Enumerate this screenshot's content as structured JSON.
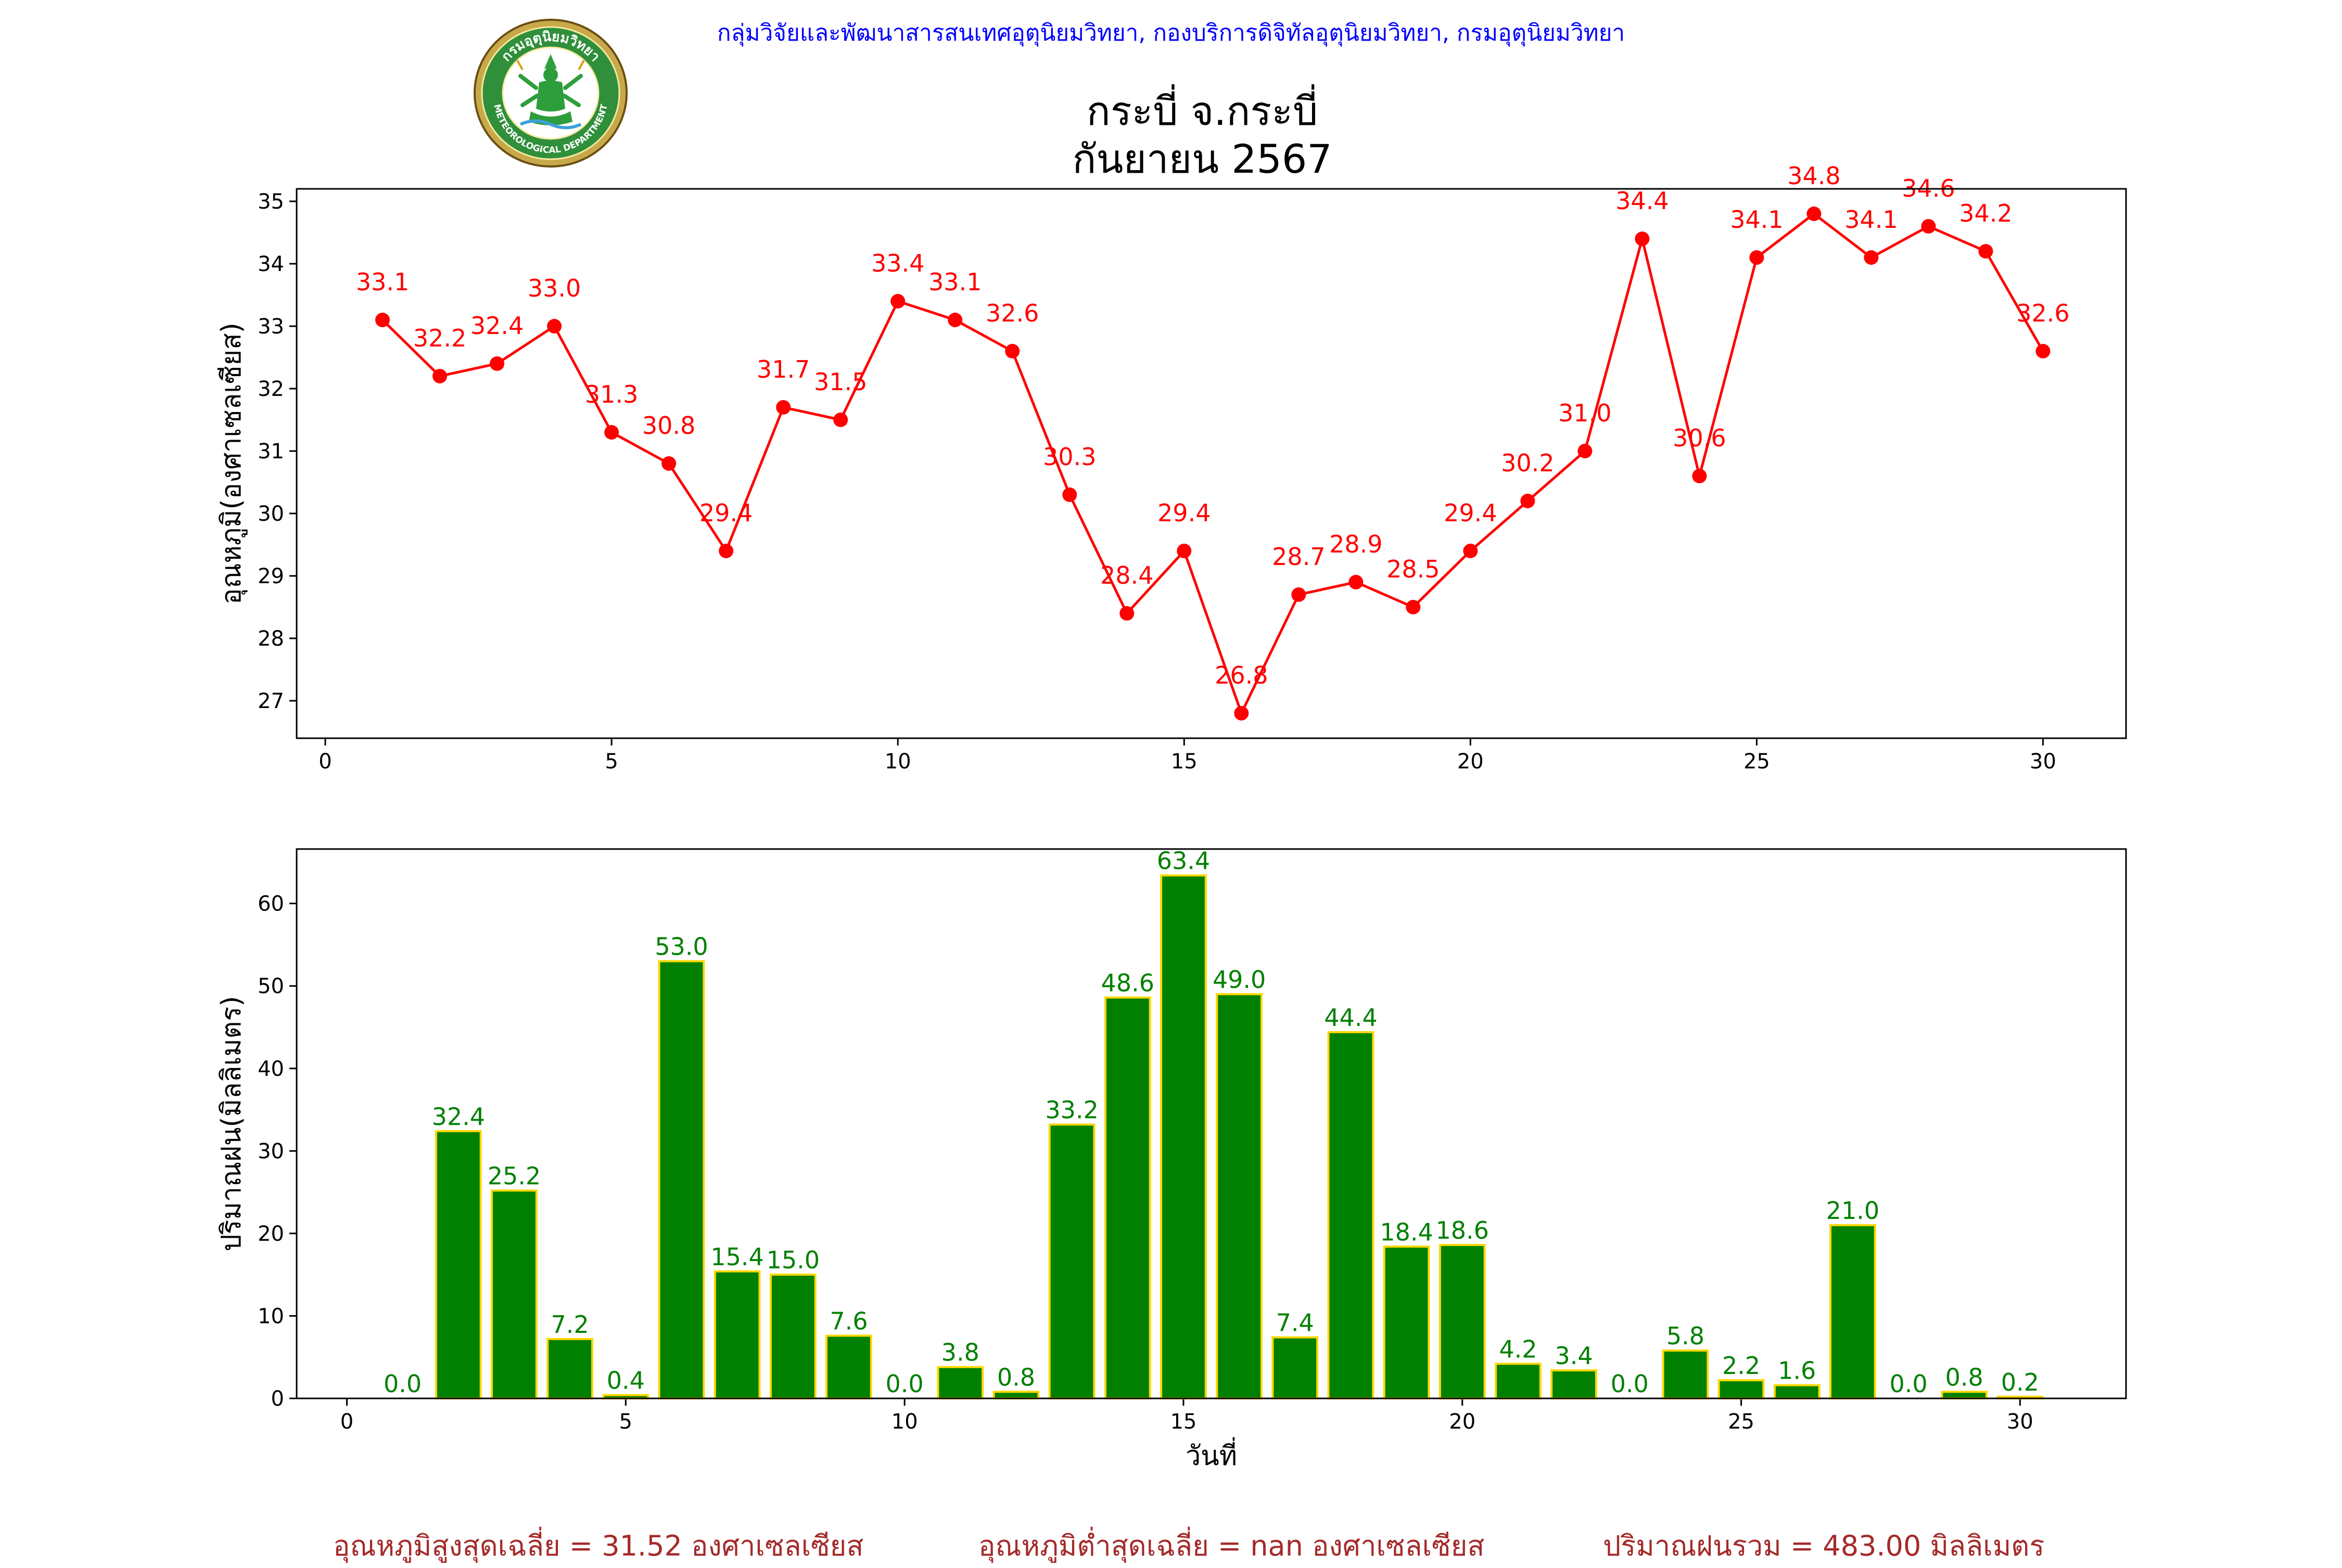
{
  "header": {
    "agency": "กลุ่มวิจัยและพัฒนาสารสนเทศอุตุนิยมวิทยา, กองบริการดิจิทัลอุตุนิยมวิทยา, กรมอุตุนิยมวิทยา",
    "title_line1": "กระบี่ จ.กระบี่",
    "title_line2": "กันยายน 2567",
    "logo_text_top": "กรมอุตุนิยมวิทยา",
    "logo_text_bottom": "METEOROLOGICAL DEPARTMENT"
  },
  "chart_data": [
    {
      "type": "line",
      "ylabel": "อุณหภูมิ(องศาเซลเซียส)",
      "xlabel": "",
      "color": "#ff0000",
      "x": [
        1,
        2,
        3,
        4,
        5,
        6,
        7,
        8,
        9,
        10,
        11,
        12,
        13,
        14,
        15,
        16,
        17,
        18,
        19,
        20,
        21,
        22,
        23,
        24,
        25,
        26,
        27,
        28,
        29,
        30
      ],
      "values": [
        33.1,
        32.2,
        32.4,
        33.0,
        31.3,
        30.8,
        29.4,
        31.7,
        31.5,
        33.4,
        33.1,
        32.6,
        30.3,
        28.4,
        29.4,
        26.8,
        28.7,
        28.9,
        28.5,
        29.4,
        30.2,
        31.0,
        34.4,
        30.6,
        34.1,
        34.8,
        34.1,
        34.6,
        34.2,
        32.6
      ],
      "labels": [
        "33.1",
        "32.2",
        "32.4",
        "33.0",
        "31.3",
        "30.8",
        "29.4",
        "31.7",
        "31.5",
        "33.4",
        "33.1",
        "32.6",
        "30.3",
        "28.4",
        "29.4",
        "26.8",
        "28.7",
        "28.9",
        "28.5",
        "29.4",
        "30.2",
        "31.0",
        "34.4",
        "30.6",
        "34.1",
        "34.8",
        "34.1",
        "34.6",
        "34.2",
        "32.6"
      ],
      "xlim": [
        -0.5,
        31.45
      ],
      "ylim": [
        26.4,
        35.2
      ],
      "xticks": [
        0,
        5,
        10,
        15,
        20,
        25,
        30
      ],
      "xticklabels": [
        "0",
        "5",
        "10",
        "15",
        "20",
        "25",
        "30"
      ],
      "yticks": [
        27,
        28,
        29,
        30,
        31,
        32,
        33,
        34,
        35
      ],
      "yticklabels": [
        "27",
        "28",
        "29",
        "30",
        "31",
        "32",
        "33",
        "34",
        "35"
      ],
      "grid": false
    },
    {
      "type": "bar",
      "ylabel": "ปริมาณฝน(มิลลิเมตร)",
      "xlabel": "วันที่",
      "bar_color": "#008000",
      "edge_color": "#ffd700",
      "label_color": "#008000",
      "x": [
        1,
        2,
        3,
        4,
        5,
        6,
        7,
        8,
        9,
        10,
        11,
        12,
        13,
        14,
        15,
        16,
        17,
        18,
        19,
        20,
        21,
        22,
        23,
        24,
        25,
        26,
        27,
        28,
        29,
        30
      ],
      "values": [
        0.0,
        32.4,
        25.2,
        7.2,
        0.4,
        53.0,
        15.4,
        15.0,
        7.6,
        0.0,
        3.8,
        0.8,
        33.2,
        48.6,
        63.4,
        49.0,
        7.4,
        44.4,
        18.4,
        18.6,
        4.2,
        3.4,
        0.0,
        5.8,
        2.2,
        1.6,
        21.0,
        0.0,
        0.8,
        0.2
      ],
      "labels": [
        "0.0",
        "32.4",
        "25.2",
        "7.2",
        "0.4",
        "53.0",
        "15.4",
        "15.0",
        "7.6",
        "0.0",
        "3.8",
        "0.8",
        "33.2",
        "48.6",
        "63.4",
        "49.0",
        "7.4",
        "44.4",
        "18.4",
        "18.6",
        "4.2",
        "3.4",
        "0.0",
        "5.8",
        "2.2",
        "1.6",
        "21.0",
        "0.0",
        "0.8",
        "0.2"
      ],
      "xlim": [
        -0.9,
        31.9
      ],
      "ylim": [
        0,
        66.6
      ],
      "xticks": [
        0,
        5,
        10,
        15,
        20,
        25,
        30
      ],
      "xticklabels": [
        "0",
        "5",
        "10",
        "15",
        "20",
        "25",
        "30"
      ],
      "yticks": [
        0,
        10,
        20,
        30,
        40,
        50,
        60
      ],
      "yticklabels": [
        "0",
        "10",
        "20",
        "30",
        "40",
        "50",
        "60"
      ],
      "grid": false
    }
  ],
  "summary": {
    "avg_max_temp": "อุณหภูมิสูงสุดเฉลี่ย = 31.52 องศาเซลเซียส",
    "avg_min_temp": "อุณหภูมิต่ำสุดเฉลี่ย = nan องศาเซลเซียส",
    "total_rain": "ปริมาณฝนรวม = 483.00 มิลลิเมตร"
  }
}
